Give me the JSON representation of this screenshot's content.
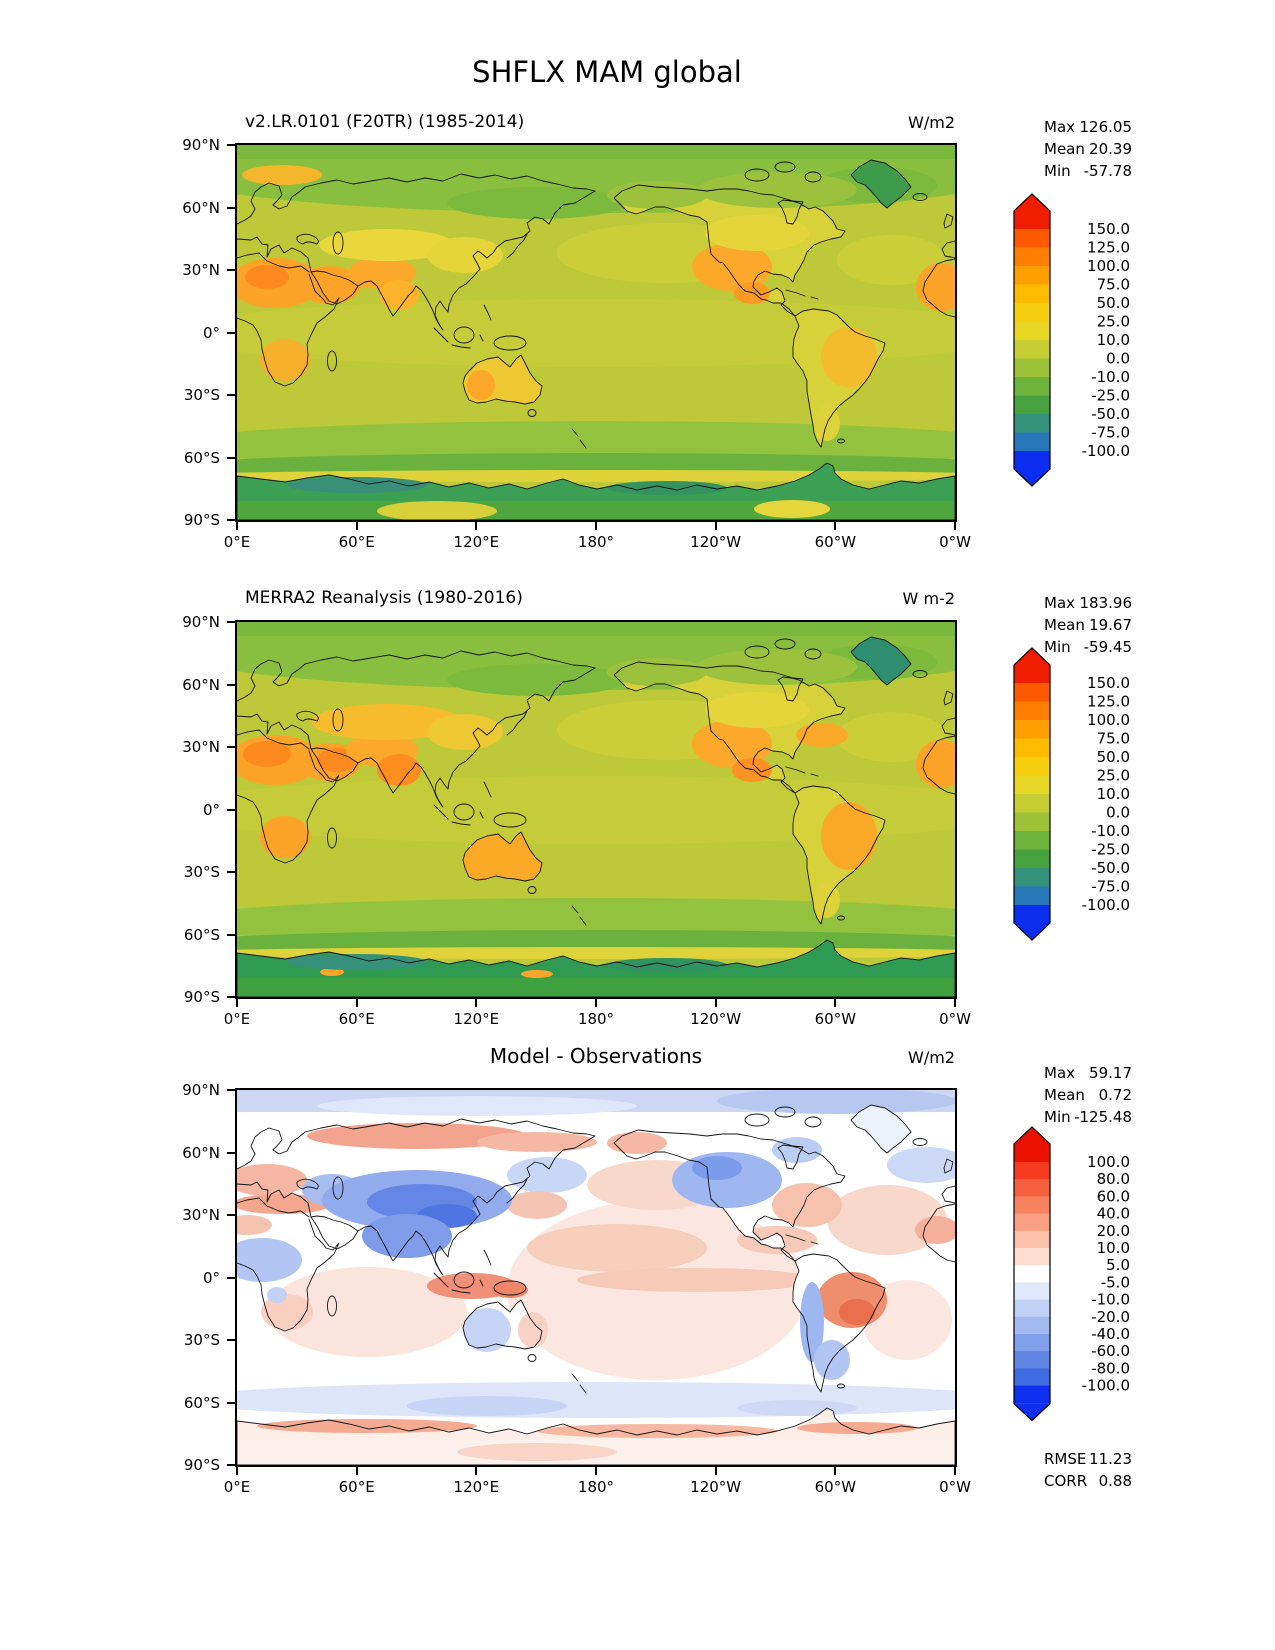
{
  "figure": {
    "title": "SHFLX MAM global"
  },
  "axes": {
    "xticks": [
      "0°E",
      "60°E",
      "120°E",
      "180°",
      "120°W",
      "60°W",
      "0°W"
    ],
    "yticks": [
      "90°N",
      "60°N",
      "30°N",
      "0°",
      "30°S",
      "60°S",
      "90°S"
    ]
  },
  "panels": [
    {
      "id": "model",
      "title": "v2.LR.0101 (F20TR) (1985-2014)",
      "units": "W/m2",
      "stats": [
        {
          "label": "Max",
          "value": "126.05"
        },
        {
          "label": "Mean",
          "value": "20.39"
        },
        {
          "label": "Min",
          "value": "-57.78"
        }
      ],
      "colorbar": {
        "labels": [
          "150.0",
          "125.0",
          "100.0",
          "75.0",
          "50.0",
          "25.0",
          "10.0",
          "0.0",
          "-10.0",
          "-25.0",
          "-50.0",
          "-75.0",
          "-100.0"
        ],
        "band_colors": [
          "#fd5a00",
          "#ff7d00",
          "#ffa000",
          "#ffbb00",
          "#f6cf10",
          "#e7d724",
          "#c6cd33",
          "#9cc338",
          "#6eb43c",
          "#47a13e",
          "#34927b",
          "#2778b8"
        ],
        "over_color": "#f01d00",
        "under_color": "#0b2df0",
        "band_height": 18.5
      }
    },
    {
      "id": "reanalysis",
      "title": "MERRA2 Reanalysis (1980-2016)",
      "units": "W m-2",
      "stats": [
        {
          "label": "Max",
          "value": "183.96"
        },
        {
          "label": "Mean",
          "value": "19.67"
        },
        {
          "label": "Min",
          "value": "-59.45"
        }
      ],
      "colorbar": {
        "labels": [
          "150.0",
          "125.0",
          "100.0",
          "75.0",
          "50.0",
          "25.0",
          "10.0",
          "0.0",
          "-10.0",
          "-25.0",
          "-50.0",
          "-75.0",
          "-100.0"
        ],
        "band_colors": [
          "#fd5a00",
          "#ff7d00",
          "#ffa000",
          "#ffbb00",
          "#f6cf10",
          "#e7d724",
          "#c6cd33",
          "#9cc338",
          "#6eb43c",
          "#47a13e",
          "#34927b",
          "#2778b8"
        ],
        "over_color": "#f01d00",
        "under_color": "#0b2df0",
        "band_height": 18.5
      }
    },
    {
      "id": "difference",
      "title": "Model - Observations",
      "units": "W/m2",
      "stats": [
        {
          "label": "Max",
          "value": "59.17"
        },
        {
          "label": "Mean",
          "value": "0.72"
        },
        {
          "label": "Min",
          "value": "-125.48"
        }
      ],
      "extra_stats": [
        {
          "label": "RMSE",
          "value": "11.23"
        },
        {
          "label": "CORR",
          "value": "0.88"
        }
      ],
      "colorbar": {
        "labels": [
          "100.0",
          "80.0",
          "60.0",
          "40.0",
          "20.0",
          "10.0",
          "5.0",
          "-5.0",
          "-10.0",
          "-20.0",
          "-40.0",
          "-60.0",
          "-80.0",
          "-100.0"
        ],
        "band_colors": [
          "#f63b21",
          "#f7603f",
          "#f8815f",
          "#faa183",
          "#fbc0aa",
          "#fddcd0",
          "#ffffff",
          "#dfe8fa",
          "#c2d2f6",
          "#a3baf1",
          "#81a0ec",
          "#6186e6",
          "#3f6ce0"
        ],
        "over_color": "#eb1000",
        "under_color": "#0d2ff0",
        "band_height": 17.2
      }
    }
  ],
  "chart_data": [
    {
      "type": "heatmap",
      "subtype": "filled-contour-global-map",
      "variable": "SHFLX",
      "season": "MAM",
      "region": "global",
      "title": "v2.LR.0101 (F20TR) (1985-2014)",
      "units": "W/m2",
      "x_ticks": [
        "0°E",
        "60°E",
        "120°E",
        "180°",
        "120°W",
        "60°W",
        "0°W"
      ],
      "y_ticks": [
        "90°N",
        "60°N",
        "30°N",
        "0°",
        "30°S",
        "60°S",
        "90°S"
      ],
      "levels": [
        -100,
        -75,
        -50,
        -25,
        -10,
        0,
        10,
        25,
        50,
        75,
        100,
        125,
        150
      ],
      "colormap": "rainbow blue-green-yellow-orange-red, extend both",
      "stats": {
        "max": 126.05,
        "mean": 20.39,
        "min": -57.78
      },
      "pattern_summary": "Oceans ~10-25 (yellow-green); deserts/subtropical land (Sahara, Arabia, S Asia, Mexico, Australia, S Africa) 50-100 (orange); high-latitude oceans and Southern Ocean 0 to -25 (green); Antarctic coastal seas -25 to -50 (dark green); Greenland negative (green)"
    },
    {
      "type": "heatmap",
      "subtype": "filled-contour-global-map",
      "variable": "SHFLX",
      "season": "MAM",
      "region": "global",
      "title": "MERRA2 Reanalysis (1980-2016)",
      "units": "W m-2",
      "x_ticks": [
        "0°E",
        "60°E",
        "120°E",
        "180°",
        "120°W",
        "60°W",
        "0°W"
      ],
      "y_ticks": [
        "90°N",
        "60°N",
        "30°N",
        "0°",
        "30°S",
        "60°S",
        "90°S"
      ],
      "levels": [
        -100,
        -75,
        -50,
        -25,
        -10,
        0,
        10,
        25,
        50,
        75,
        100,
        125,
        150
      ],
      "colormap": "rainbow blue-green-yellow-orange-red, extend both",
      "stats": {
        "max": 183.96,
        "mean": 19.67,
        "min": -59.45
      },
      "pattern_summary": "Same layout as model but stronger orange (75-125) over central/south Asia, Middle East and Australia; darker green Antarctic coastal band"
    },
    {
      "type": "heatmap",
      "subtype": "filled-contour-global-map-difference",
      "variable": "SHFLX model minus observations",
      "season": "MAM",
      "region": "global",
      "title": "Model - Observations",
      "units": "W/m2",
      "x_ticks": [
        "0°E",
        "60°E",
        "120°E",
        "180°",
        "120°W",
        "60°W",
        "0°W"
      ],
      "y_ticks": [
        "90°N",
        "60°N",
        "30°N",
        "0°",
        "30°S",
        "60°S",
        "90°S"
      ],
      "levels": [
        -100,
        -80,
        -60,
        -40,
        -20,
        -10,
        -5,
        5,
        10,
        20,
        40,
        60,
        80,
        100
      ],
      "colormap": "diverging blue-white-red, extend both",
      "stats": {
        "max": 59.17,
        "mean": 0.72,
        "min": -125.48
      },
      "rmse": 11.23,
      "corr": 0.88,
      "pattern_summary": "Mostly near zero (white); strong negative bias -20 to -60 (blue) over central/south Asia, western N America, Andes; positive bias +10 to +40 (red) over Siberia band, Amazon, Indonesia, Mediterranean; faint pink over Pacific/Atlantic; light blue Arctic and Southern Ocean; salmon ring along Antarctic coast"
    }
  ]
}
